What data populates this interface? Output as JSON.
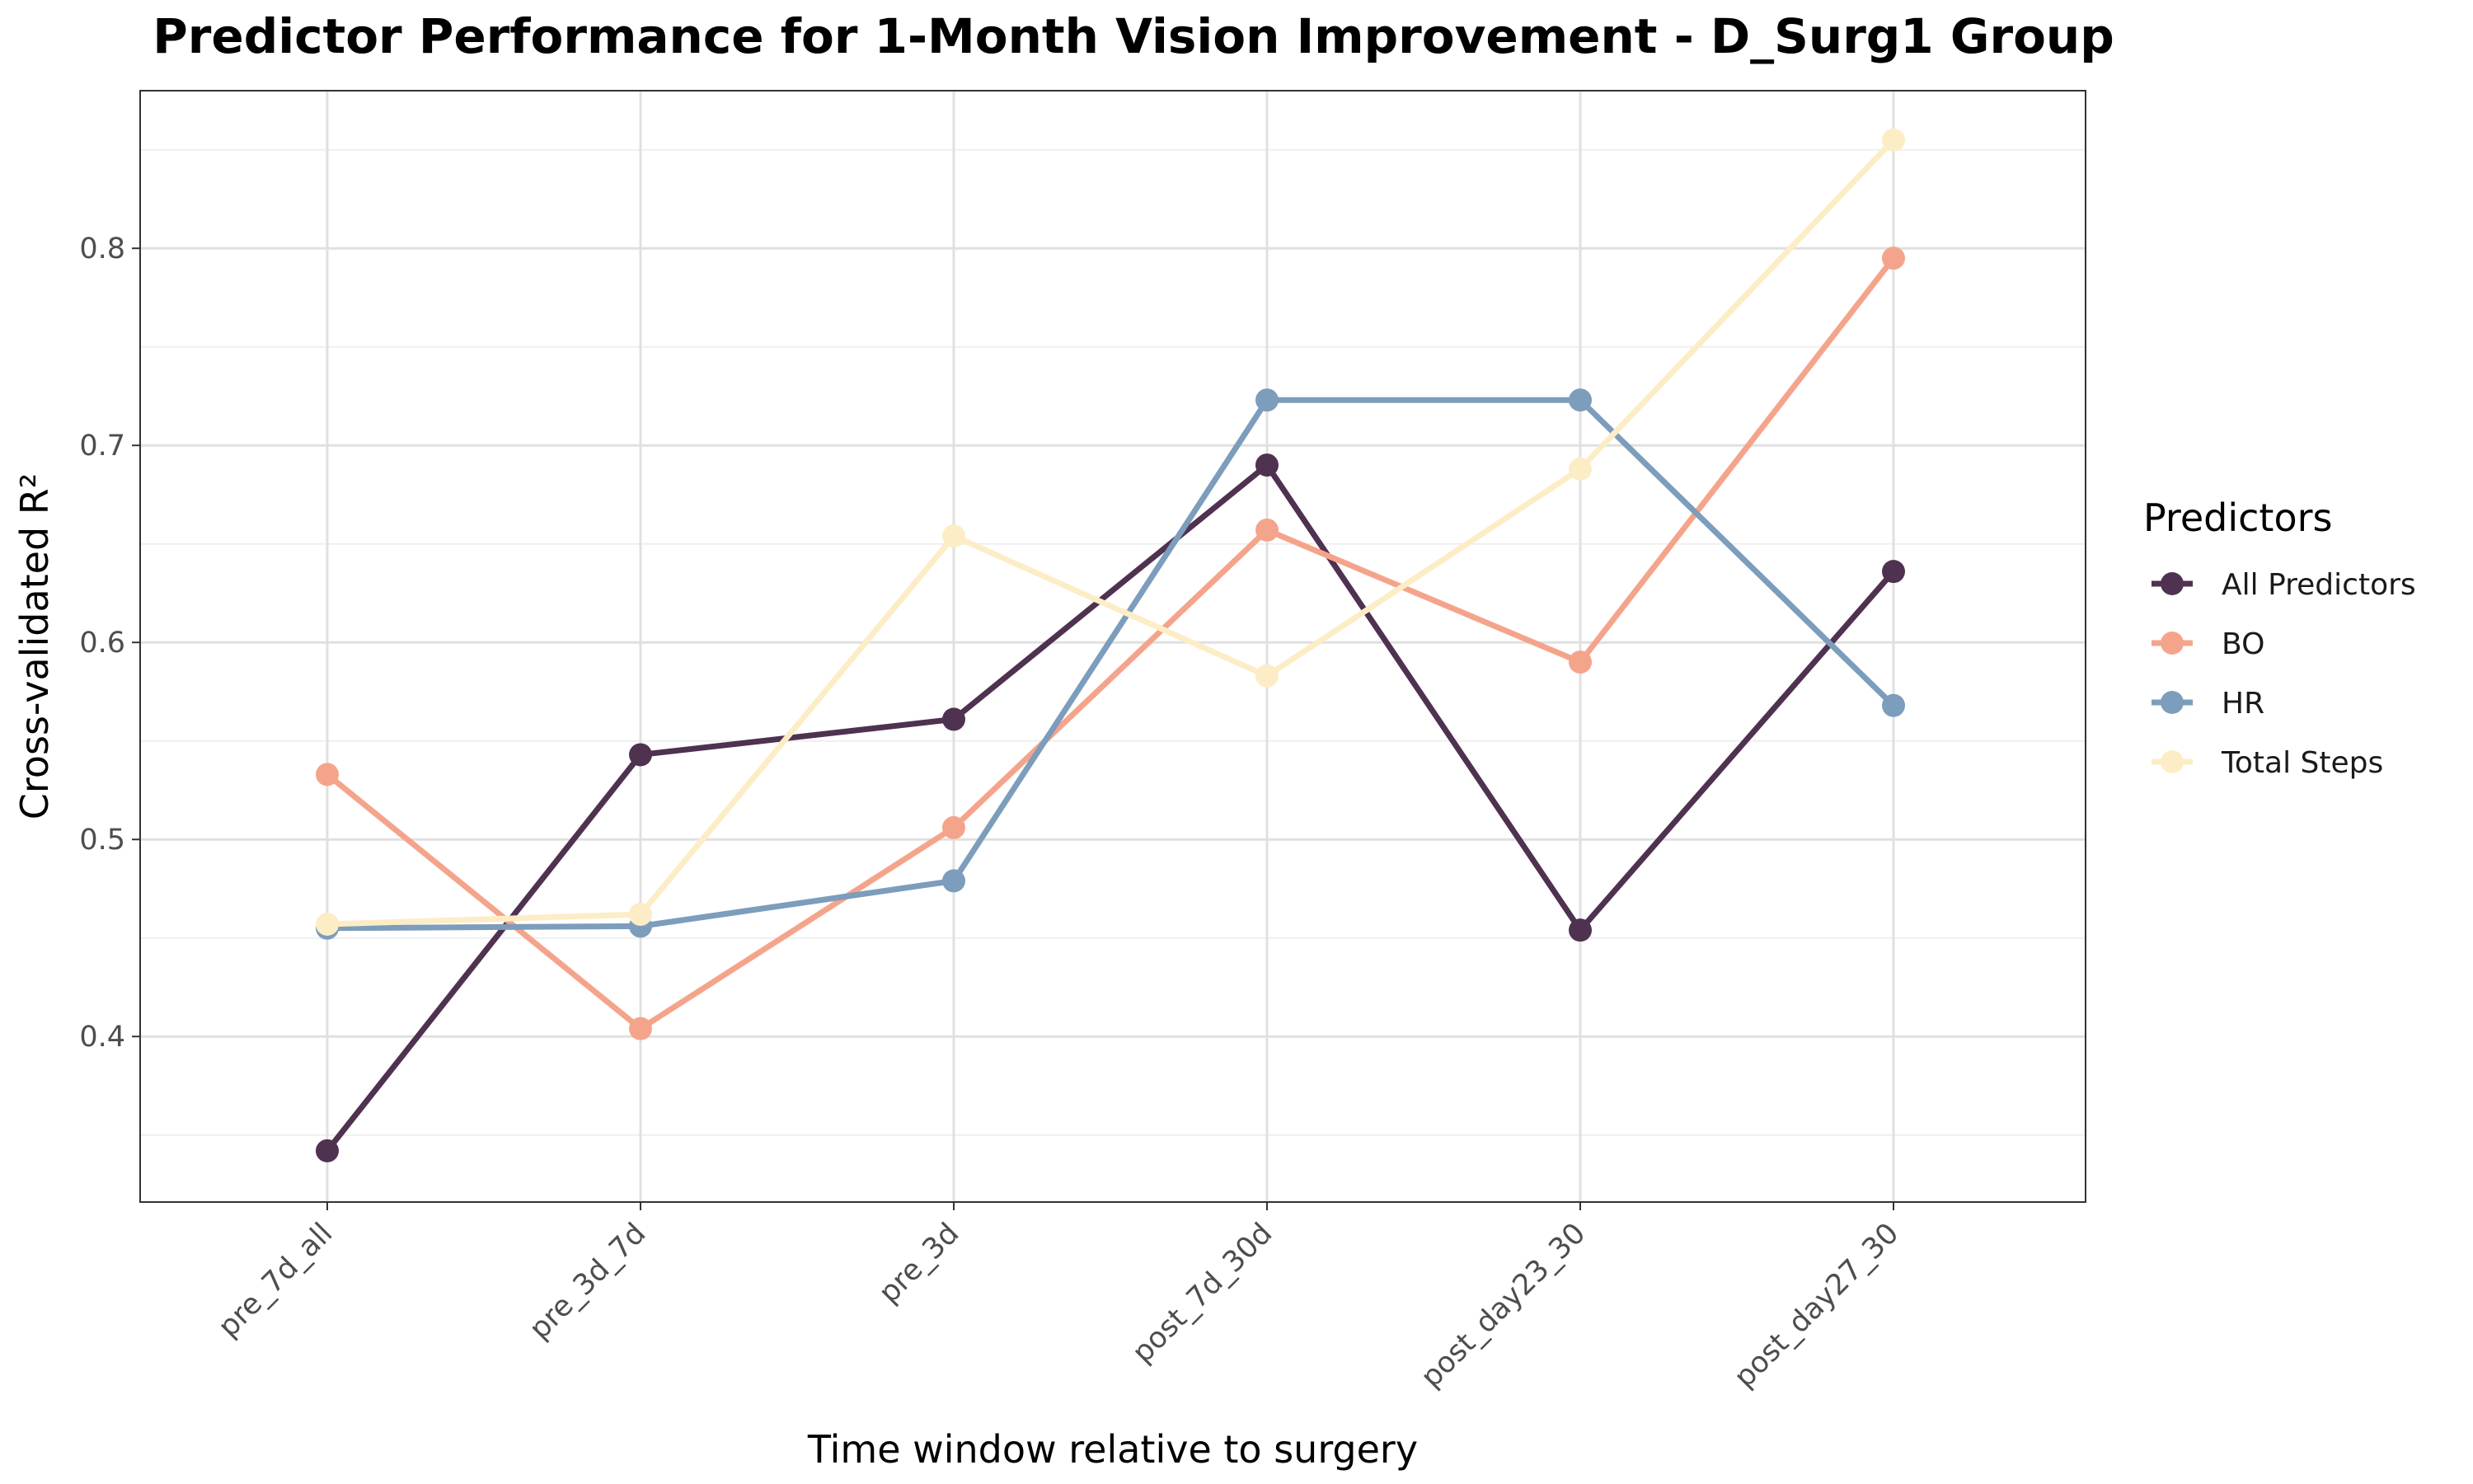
{
  "chart_data": {
    "type": "line",
    "title": "Predictor Performance for 1-Month Vision Improvement - D_Surg1 Group",
    "xlabel": "Time window relative to surgery",
    "ylabel": "Cross-validated R²",
    "categories": [
      "pre_7d_all",
      "pre_3d_7d",
      "pre_3d",
      "post_7d_30d",
      "post_day23_30",
      "post_day27_30"
    ],
    "ylim": [
      0.316,
      0.88
    ],
    "yticks": [
      0.4,
      0.5,
      0.6,
      0.7,
      0.8
    ],
    "ytick_labels": [
      "0.4",
      "0.5",
      "0.6",
      "0.7",
      "0.8"
    ],
    "grid": true,
    "legend": {
      "title": "Predictors",
      "position": "right"
    },
    "series": [
      {
        "name": "All Predictors",
        "color": "#4f3150",
        "values": [
          0.342,
          0.543,
          0.561,
          0.69,
          0.454,
          0.636
        ]
      },
      {
        "name": "BO",
        "color": "#f5a48c",
        "values": [
          0.533,
          0.404,
          0.506,
          0.657,
          0.59,
          0.795
        ]
      },
      {
        "name": "HR",
        "color": "#7c9dbb",
        "values": [
          0.455,
          0.456,
          0.479,
          0.723,
          0.723,
          0.568
        ]
      },
      {
        "name": "Total Steps",
        "color": "#fdedc6",
        "values": [
          0.457,
          0.462,
          0.654,
          0.583,
          0.688,
          0.855
        ]
      }
    ]
  }
}
